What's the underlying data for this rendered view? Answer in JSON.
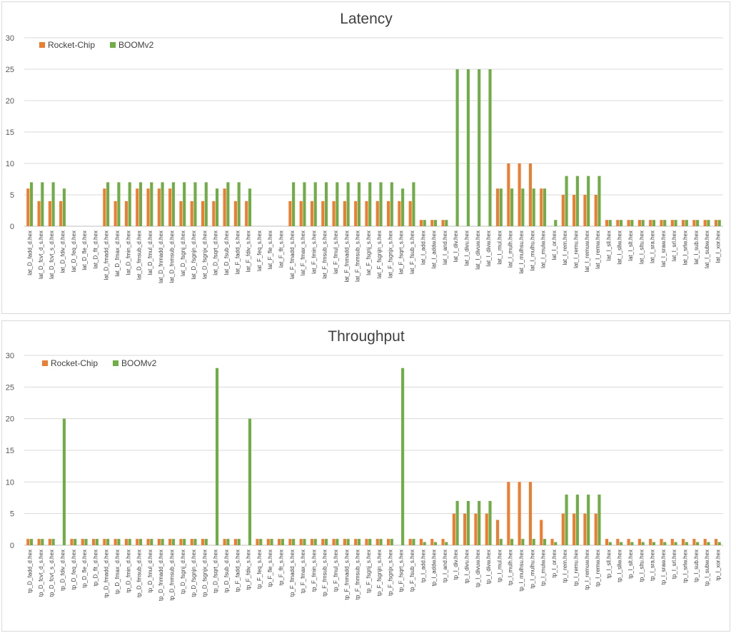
{
  "colors": {
    "rocket": "#ED7D31",
    "boom": "#70AD47",
    "grid": "#D9D9D9",
    "axis": "#BFBFBF"
  },
  "chart_data": [
    {
      "type": "bar",
      "title": "Latency",
      "ylim": [
        0,
        30
      ],
      "yticks": [
        0,
        5,
        10,
        15,
        20,
        25,
        30
      ],
      "legend_position": "top-left",
      "categories": [
        "lat_D_fadd_d.hex",
        "lat_D_fcvt_d_s.hex",
        "lat_D_fcvt_s_d.hex",
        "lat_D_fdiv_d.hex",
        "lat_D_feq_d.hex",
        "lat_D_fle_d.hex",
        "lat_D_flt_d.hex",
        "lat_D_fmadd_d.hex",
        "lat_D_fmax_d.hex",
        "lat_D_fmin_d.hex",
        "lat_D_fmsub_d.hex",
        "lat_D_fmul_d.hex",
        "lat_D_fnmadd_d.hex",
        "lat_D_fnmsub_d.hex",
        "lat_D_fsgnj_d.hex",
        "lat_D_fsgnjn_d.hex",
        "lat_D_fsgnjx_d.hex",
        "lat_D_fsqrt_d.hex",
        "lat_D_fsub_d.hex",
        "lat_F_fadd_s.hex",
        "lat_F_fdiv_s.hex",
        "lat_F_feq_s.hex",
        "lat_F_fle_s.hex",
        "lat_F_flt_s.hex",
        "lat_F_fmadd_s.hex",
        "lat_F_fmax_s.hex",
        "lat_F_fmin_s.hex",
        "lat_F_fmsub_s.hex",
        "lat_F_fmul_s.hex",
        "lat_F_fnmadd_s.hex",
        "lat_F_fnmsub_s.hex",
        "lat_F_fsgnj_s.hex",
        "lat_F_fsgnjn_s.hex",
        "lat_F_fsgnjx_s.hex",
        "lat_F_fsqrt_s.hex",
        "lat_F_fsub_s.hex",
        "lat_I_add.hex",
        "lat_I_addw.hex",
        "lat_I_and.hex",
        "lat_I_div.hex",
        "lat_I_divu.hex",
        "lat_I_divuw.hex",
        "lat_I_divw.hex",
        "lat_I_mul.hex",
        "lat_I_mulh.hex",
        "lat_I_mulhsu.hex",
        "lat_I_mulhu.hex",
        "lat_I_mulw.hex",
        "lat_I_or.hex",
        "lat_I_rem.hex",
        "lat_I_remu.hex",
        "lat_I_remuw.hex",
        "lat_I_remw.hex",
        "lat_I_sll.hex",
        "lat_I_sllw.hex",
        "lat_I_slt.hex",
        "lat_I_sltu.hex",
        "lat_I_sra.hex",
        "lat_I_sraw.hex",
        "lat_I_srl.hex",
        "lat_I_srlw.hex",
        "lat_I_sub.hex",
        "lat_I_subw.hex",
        "lat_I_xor.hex"
      ],
      "series": [
        {
          "name": "Rocket-Chip",
          "values": [
            6,
            4,
            4,
            4,
            0,
            0,
            0,
            6,
            4,
            4,
            6,
            6,
            6,
            6,
            4,
            4,
            4,
            4,
            6,
            4,
            4,
            0,
            0,
            0,
            4,
            4,
            4,
            4,
            4,
            4,
            4,
            4,
            4,
            4,
            4,
            4,
            1,
            1,
            1,
            0,
            0,
            0,
            0,
            6,
            10,
            10,
            10,
            6,
            0,
            5,
            5,
            5,
            5,
            1,
            1,
            1,
            1,
            1,
            1,
            1,
            1,
            1,
            1,
            1
          ]
        },
        {
          "name": "BOOMv2",
          "values": [
            7,
            7,
            7,
            6,
            0,
            0,
            0,
            7,
            7,
            7,
            7,
            7,
            7,
            7,
            7,
            7,
            7,
            6,
            7,
            7,
            6,
            0,
            0,
            0,
            7,
            7,
            7,
            7,
            7,
            7,
            7,
            7,
            7,
            7,
            6,
            7,
            1,
            1,
            1,
            25,
            25,
            25,
            25,
            6,
            6,
            6,
            6,
            6,
            1,
            8,
            8,
            8,
            8,
            1,
            1,
            1,
            1,
            1,
            1,
            1,
            1,
            1,
            1,
            1
          ]
        }
      ]
    },
    {
      "type": "bar",
      "title": "Throughput",
      "ylim": [
        0,
        30
      ],
      "yticks": [
        0,
        5,
        10,
        15,
        20,
        25,
        30
      ],
      "legend_position": "top-left",
      "categories": [
        "tp_D_fadd_d.hex",
        "tp_D_fcvt_d_s.hex",
        "tp_D_fcvt_s_d.hex",
        "tp_D_fdiv_d.hex",
        "tp_D_feq_d.hex",
        "tp_D_fle_d.hex",
        "tp_D_flt_d.hex",
        "tp_D_fmadd_d.hex",
        "tp_D_fmax_d.hex",
        "tp_D_fmin_d.hex",
        "tp_D_fmsub_d.hex",
        "tp_D_fmul_d.hex",
        "tp_D_fnmadd_d.hex",
        "tp_D_fnmsub_d.hex",
        "tp_D_fsgnj_d.hex",
        "tp_D_fsgnjn_d.hex",
        "tp_D_fsgnjx_d.hex",
        "tp_D_fsqrt_d.hex",
        "tp_D_fsub_d.hex",
        "tp_F_fadd_s.hex",
        "tp_F_fdiv_s.hex",
        "tp_F_feq_s.hex",
        "tp_F_fle_s.hex",
        "tp_F_flt_s.hex",
        "tp_F_fmadd_s.hex",
        "tp_F_fmax_s.hex",
        "tp_F_fmin_s.hex",
        "tp_F_fmsub_s.hex",
        "tp_F_fmul_s.hex",
        "tp_F_fnmadd_s.hex",
        "tp_F_fnmsub_s.hex",
        "tp_F_fsgnj_s.hex",
        "tp_F_fsgnjn_s.hex",
        "tp_F_fsgnjx_s.hex",
        "tp_F_fsqrt_s.hex",
        "tp_F_fsub_s.hex",
        "tp_I_add.hex",
        "tp_I_addw.hex",
        "tp_I_and.hex",
        "tp_I_div.hex",
        "tp_I_divu.hex",
        "tp_I_divuw.hex",
        "tp_I_divw.hex",
        "tp_I_mul.hex",
        "tp_I_mulh.hex",
        "tp_I_mulhsu.hex",
        "tp_I_mulhu.hex",
        "tp_I_mulw.hex",
        "tp_I_or.hex",
        "tp_I_rem.hex",
        "tp_I_remu.hex",
        "tp_I_remuw.hex",
        "tp_I_remw.hex",
        "tp_I_sll.hex",
        "tp_I_sllw.hex",
        "tp_I_slt.hex",
        "tp_I_sltu.hex",
        "tp_I_sra.hex",
        "tp_I_sraw.hex",
        "tp_I_srl.hex",
        "tp_I_srlw.hex",
        "tp_I_sub.hex",
        "tp_I_subw.hex",
        "tp_I_xor.hex"
      ],
      "series": [
        {
          "name": "Rocket-Chip",
          "values": [
            1,
            1,
            1,
            0,
            1,
            1,
            1,
            1,
            1,
            1,
            1,
            1,
            1,
            1,
            1,
            1,
            1,
            0,
            1,
            1,
            0,
            1,
            1,
            1,
            1,
            1,
            1,
            1,
            1,
            1,
            1,
            1,
            1,
            1,
            0,
            1,
            1,
            1,
            1,
            5,
            5,
            5,
            5,
            4,
            10,
            10,
            10,
            4,
            1,
            5,
            5,
            5,
            5,
            1,
            1,
            1,
            1,
            1,
            1,
            1,
            1,
            1,
            1,
            1
          ]
        },
        {
          "name": "BOOMv2",
          "values": [
            1,
            1,
            1,
            20,
            1,
            1,
            1,
            1,
            1,
            1,
            1,
            1,
            1,
            1,
            1,
            1,
            1,
            28,
            1,
            1,
            20,
            1,
            1,
            1,
            1,
            1,
            1,
            1,
            1,
            1,
            1,
            1,
            1,
            1,
            28,
            1,
            0.5,
            0.5,
            0.5,
            7,
            7,
            7,
            7,
            1,
            1,
            1,
            1,
            1,
            0.5,
            8,
            8,
            8,
            8,
            0.5,
            0.5,
            0.5,
            0.5,
            0.5,
            0.5,
            0.5,
            0.5,
            0.5,
            0.5,
            0.5
          ]
        }
      ]
    }
  ]
}
